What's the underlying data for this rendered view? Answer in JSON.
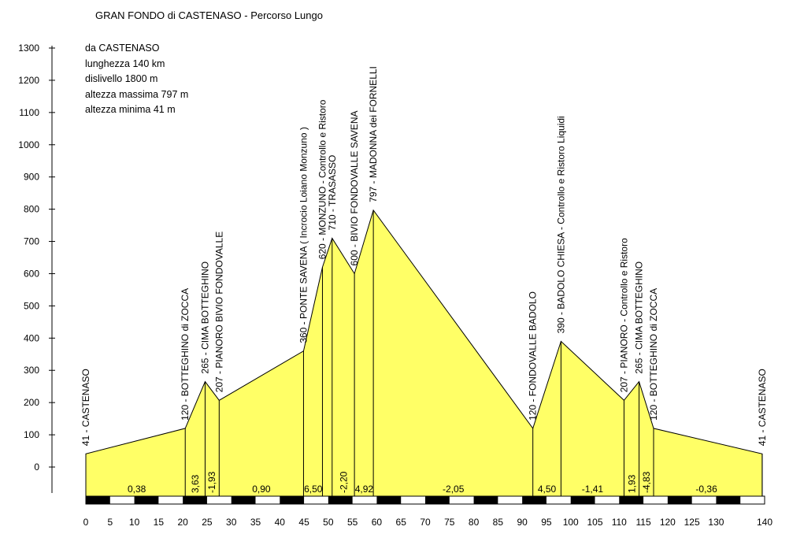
{
  "chart_data": {
    "type": "area",
    "title": "GRAN FONDO di CASTENASO - Percorso Lungo",
    "info": [
      "da CASTENASO",
      "lunghezza 140 km",
      "dislivello 1800 m",
      "altezza massima 797 m",
      "altezza minima 41 m"
    ],
    "xlabel": "",
    "ylabel": "",
    "xlim": [
      0,
      140
    ],
    "ylim": [
      0,
      1300
    ],
    "x_ticks": [
      0,
      5,
      10,
      15,
      20,
      25,
      30,
      35,
      40,
      45,
      50,
      55,
      60,
      65,
      70,
      75,
      80,
      85,
      90,
      95,
      100,
      105,
      110,
      115,
      120,
      125,
      130,
      140
    ],
    "y_ticks": [
      0,
      100,
      200,
      300,
      400,
      500,
      600,
      700,
      800,
      900,
      1000,
      1100,
      1200,
      1300
    ],
    "fill_color": "#ffff66",
    "points": [
      {
        "x": 0,
        "y": 41,
        "label": "41 - CASTENASO"
      },
      {
        "x": 20.5,
        "y": 120,
        "label": "120 - BOTTEGHINO  di  ZOCCA"
      },
      {
        "x": 24.6,
        "y": 265,
        "label": "265 - CIMA  BOTTEGHINO"
      },
      {
        "x": 27.5,
        "y": 207,
        "label": "207 - PIANORO  BIVIO  FONDOVALLE"
      },
      {
        "x": 44.9,
        "y": 360,
        "label": "360 - PONTE SAVENA ( Incrocio Loiano Monzuno )"
      },
      {
        "x": 48.8,
        "y": 620,
        "label": "620 - MONZUNO - Controllo e Ristoro"
      },
      {
        "x": 50.8,
        "y": 710,
        "label": "710 - TRASASSO"
      },
      {
        "x": 55.4,
        "y": 600,
        "label": "600 - BIVIO FONDOVALLE SAVENA"
      },
      {
        "x": 59.3,
        "y": 797,
        "label": "797 - MADONNA  dei  FORNELLI"
      },
      {
        "x": 92.2,
        "y": 120,
        "label": "120 - FONDOVALLE  BADOLO"
      },
      {
        "x": 98.0,
        "y": 390,
        "label": "390 - BADOLO  CHIESA - Controllo e Ristoro Liquidi"
      },
      {
        "x": 111.0,
        "y": 207,
        "label": "207 - PIANORO - Controllo e Ristoro"
      },
      {
        "x": 114.1,
        "y": 265,
        "label": "265 - CIMA  BOTTEGHINO"
      },
      {
        "x": 117.1,
        "y": 120,
        "label": "120 - BOTTEGHINO  di  ZOCCA"
      },
      {
        "x": 139.5,
        "y": 41,
        "label": "41 - CASTENASO"
      }
    ],
    "gradients": [
      {
        "x": 10.5,
        "value": "0,38",
        "vertical": false
      },
      {
        "x": 22.6,
        "value": "3,63",
        "vertical": true
      },
      {
        "x": 26.0,
        "value": "-1,93",
        "vertical": true
      },
      {
        "x": 36.2,
        "value": "0,90",
        "vertical": false
      },
      {
        "x": 46.9,
        "value": "6,50",
        "vertical": false
      },
      {
        "x": 53.2,
        "value": "-2,20",
        "vertical": true
      },
      {
        "x": 57.4,
        "value": "4,92",
        "vertical": false
      },
      {
        "x": 75.8,
        "value": "-2,05",
        "vertical": false
      },
      {
        "x": 95.1,
        "value": "4,50",
        "vertical": false
      },
      {
        "x": 104.5,
        "value": "-1,41",
        "vertical": false
      },
      {
        "x": 112.6,
        "value": "1,93",
        "vertical": true
      },
      {
        "x": 115.6,
        "value": "-4,83",
        "vertical": true
      },
      {
        "x": 128.0,
        "value": "-0,36",
        "vertical": false
      }
    ]
  }
}
